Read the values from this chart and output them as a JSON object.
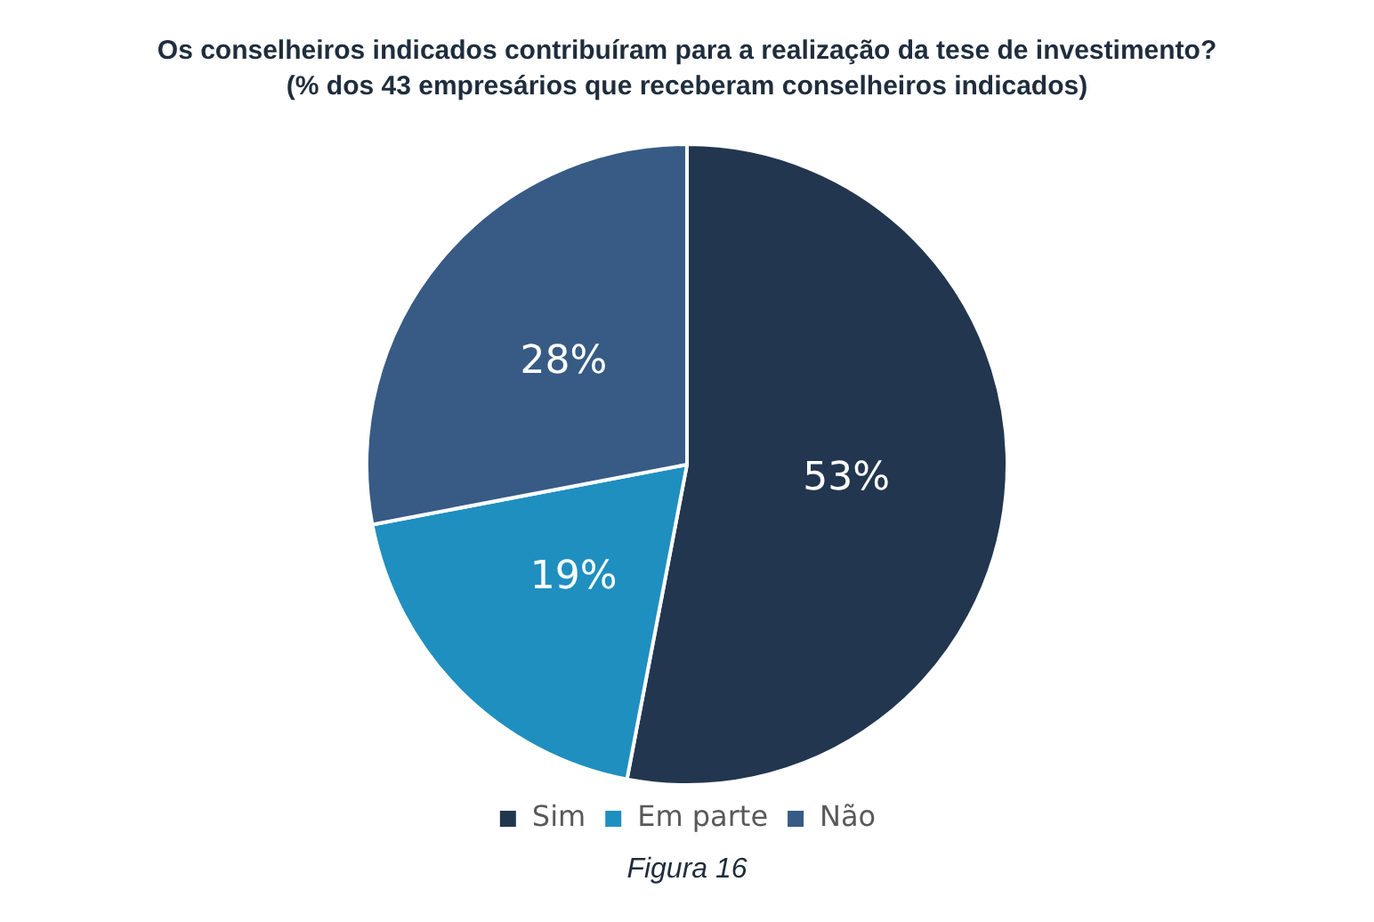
{
  "chart_data": {
    "type": "pie",
    "title": "Os conselheiros indicados contribuíram para a realização da tese de investimento?",
    "subtitle": "(% dos 43 empresários que receberam conselheiros indicados)",
    "categories": [
      "Sim",
      "Em parte",
      "Não"
    ],
    "values": [
      53,
      19,
      28
    ],
    "value_labels": [
      "53%",
      "19%",
      "28%"
    ],
    "colors": [
      "#22364f",
      "#1f8fc0",
      "#375b85"
    ],
    "legend": "bottom",
    "annotations": [
      "Figura 16"
    ]
  }
}
